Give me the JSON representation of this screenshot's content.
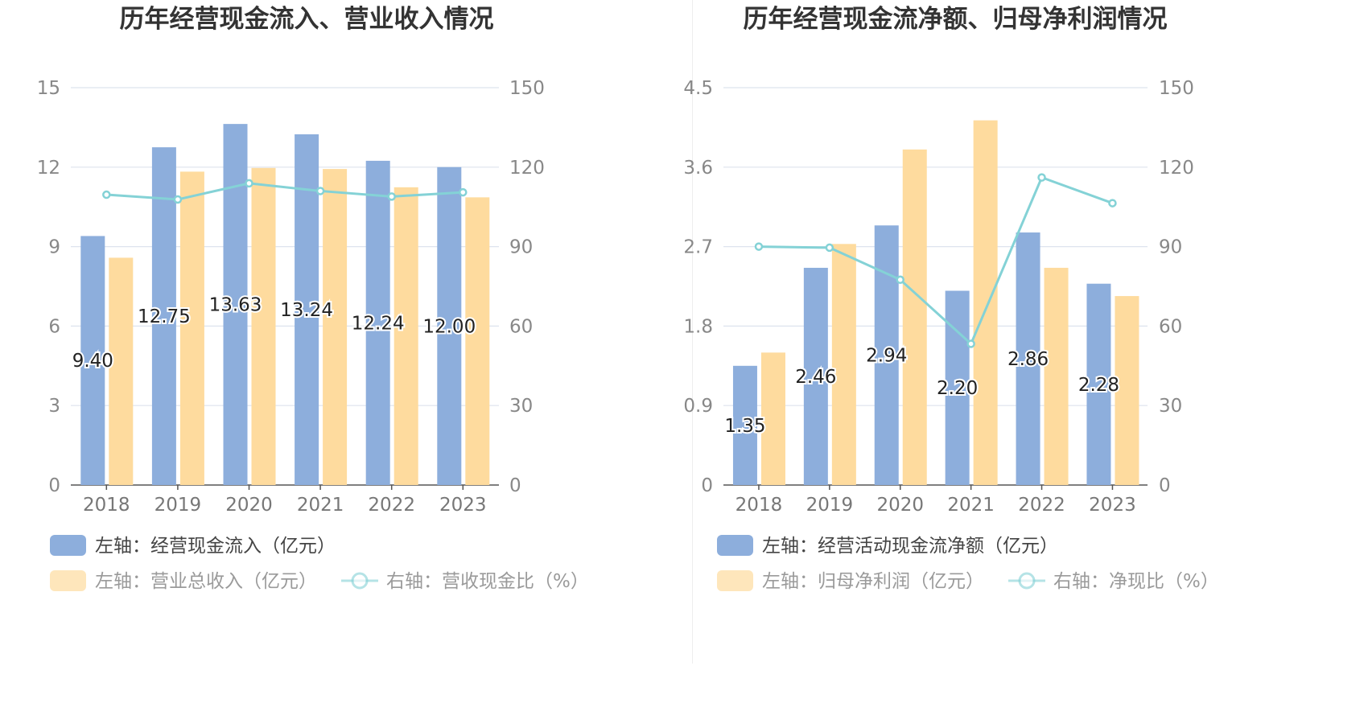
{
  "colors": {
    "bar1": "#8daedc",
    "bar2": "#fedb9e",
    "line": "#84d2d6",
    "grid": "#dde3ee",
    "axis": "#555555"
  },
  "chart_data": [
    {
      "id": "left",
      "type": "bar",
      "title": "历年经营现金流入、营业收入情况",
      "categories": [
        "2018",
        "2019",
        "2020",
        "2021",
        "2022",
        "2023"
      ],
      "yleft": {
        "min": 0,
        "max": 15,
        "ticks": [
          "0",
          "3",
          "6",
          "9",
          "12",
          "15"
        ]
      },
      "yright": {
        "min": 0,
        "max": 150,
        "ticks": [
          "0",
          "30",
          "60",
          "90",
          "120",
          "150"
        ]
      },
      "grid": true,
      "legend_position": "bottom-left",
      "series": [
        {
          "name": "左轴：经营现金流入（亿元）",
          "kind": "bar",
          "axis": "left",
          "color": "bar1",
          "values": [
            9.4,
            12.75,
            13.63,
            13.24,
            12.24,
            12.0
          ],
          "labels": [
            "9.40",
            "12.75",
            "13.63",
            "13.24",
            "12.24",
            "12.00"
          ]
        },
        {
          "name": "左轴：营业总收入（亿元）",
          "kind": "bar",
          "axis": "left",
          "color": "bar2",
          "values": [
            8.58,
            11.83,
            11.97,
            11.93,
            11.24,
            10.86
          ]
        },
        {
          "name": "右轴：营收现金比（%）",
          "kind": "line",
          "axis": "right",
          "color": "line",
          "values": [
            109.6,
            107.8,
            113.9,
            111.0,
            108.9,
            110.5
          ]
        }
      ]
    },
    {
      "id": "right",
      "type": "bar",
      "title": "历年经营现金流净额、归母净利润情况",
      "categories": [
        "2018",
        "2019",
        "2020",
        "2021",
        "2022",
        "2023"
      ],
      "yleft": {
        "min": 0,
        "max": 4.5,
        "ticks": [
          "0",
          "0.9",
          "1.8",
          "2.7",
          "3.6",
          "4.5"
        ]
      },
      "yright": {
        "min": 0,
        "max": 150,
        "ticks": [
          "0",
          "30",
          "60",
          "90",
          "120",
          "150"
        ]
      },
      "grid": true,
      "legend_position": "bottom-left",
      "series": [
        {
          "name": "左轴：经营活动现金流净额（亿元）",
          "kind": "bar",
          "axis": "left",
          "color": "bar1",
          "values": [
            1.35,
            2.46,
            2.94,
            2.2,
            2.86,
            2.28
          ],
          "labels": [
            "1.35",
            "2.46",
            "2.94",
            "2.20",
            "2.86",
            "2.28"
          ]
        },
        {
          "name": "左轴：归母净利润（亿元）",
          "kind": "bar",
          "axis": "left",
          "color": "bar2",
          "values": [
            1.5,
            2.73,
            3.8,
            4.13,
            2.46,
            2.14
          ]
        },
        {
          "name": "右轴：净现比（%）",
          "kind": "line",
          "axis": "right",
          "color": "line",
          "values": [
            90.0,
            89.6,
            77.5,
            53.3,
            116.1,
            106.4
          ]
        }
      ]
    }
  ]
}
